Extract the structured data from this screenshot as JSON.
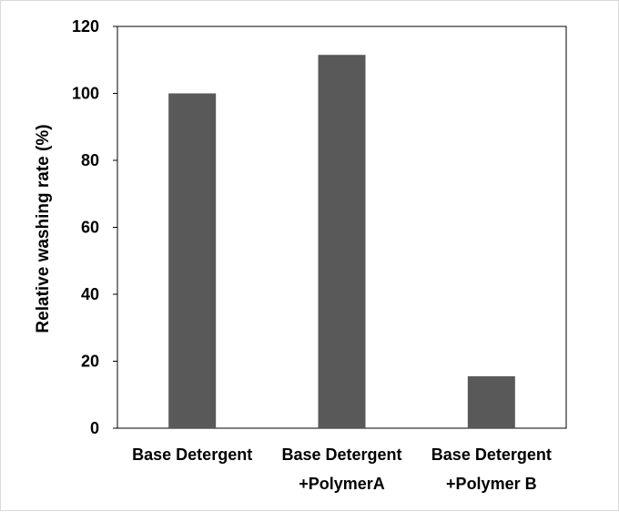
{
  "chart_data": {
    "type": "bar",
    "title": "",
    "xlabel": "",
    "ylabel": "Relative washing rate (%)",
    "ylim": [
      0,
      120
    ],
    "yticks": [
      "0",
      "20",
      "40",
      "60",
      "80",
      "100",
      "120"
    ],
    "categories": [
      [
        "Base Detergent"
      ],
      [
        "Base Detergent",
        "+PolymerA"
      ],
      [
        "Base Detergent",
        "+Polymer B"
      ]
    ],
    "values": [
      100,
      111.5,
      15.5
    ],
    "bar_color": "#595959",
    "grid": false
  }
}
